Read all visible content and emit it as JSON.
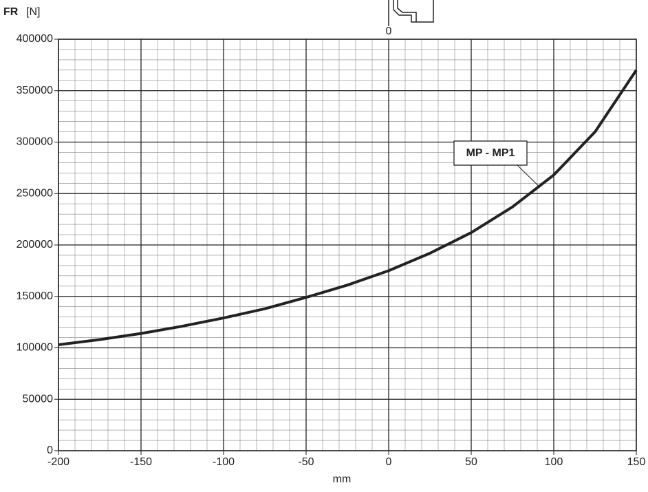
{
  "chart_data": {
    "type": "line",
    "y_label_bold": "FR",
    "y_label_unit": "[N]",
    "x_label": "mm",
    "top_marker_label": "0",
    "x": [
      -200,
      -175,
      -150,
      -125,
      -100,
      -75,
      -50,
      -25,
      0,
      25,
      50,
      75,
      100,
      125,
      150
    ],
    "series": [
      {
        "name": "MP - MP1",
        "color": "#222222",
        "values": [
          103000,
          108000,
          114000,
          121000,
          129000,
          138000,
          149000,
          161000,
          175000,
          192000,
          212000,
          237000,
          268000,
          310000,
          370000
        ]
      }
    ],
    "xlim": [
      -200,
      150
    ],
    "xticks": [
      -200,
      -150,
      -100,
      -50,
      0,
      50,
      100,
      150
    ],
    "ylim": [
      0,
      400000
    ],
    "yticks": [
      0,
      50000,
      100000,
      150000,
      200000,
      250000,
      300000,
      350000,
      400000
    ],
    "grid": true
  }
}
